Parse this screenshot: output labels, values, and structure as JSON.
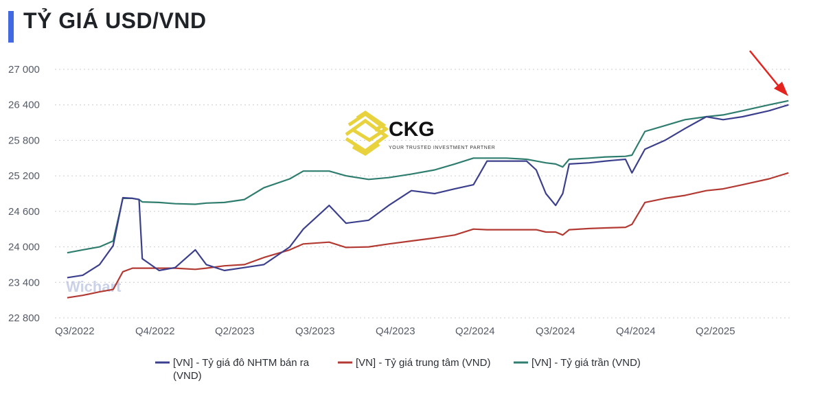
{
  "title": "TỶ GIÁ USD/VND",
  "colors": {
    "accent": "#4169e1",
    "arrow": "#e5231e"
  },
  "watermark": {
    "logo_text": "CKG",
    "tagline": "YOUR TRUSTED INVESTMENT PARTNER",
    "wichart": "Wichart"
  },
  "chart_data": {
    "type": "line",
    "title": "TỶ GIÁ USD/VND",
    "xlabel": "",
    "ylabel": "",
    "ylim": [
      22800,
      27000
    ],
    "yticks": [
      27000,
      26400,
      25800,
      25200,
      24600,
      24000,
      23400,
      22800
    ],
    "ytick_labels": [
      "27 000",
      "26 400",
      "25 800",
      "25 200",
      "24 600",
      "24 000",
      "23 400",
      "22 800"
    ],
    "xticks": [
      "Q3/2022",
      "Q4/2022",
      "Q2/2023",
      "Q3/2023",
      "Q4/2023",
      "Q2/2024",
      "Q3/2024",
      "Q4/2024",
      "Q2/2025"
    ],
    "grid": true,
    "legend_position": "bottom",
    "x": [
      "2022-07-01",
      "2022-07-25",
      "2022-08-20",
      "2022-09-10",
      "2022-09-25",
      "2022-10-10",
      "2022-10-20",
      "2022-10-25",
      "2022-11-20",
      "2022-12-15",
      "2023-01-15",
      "2023-02-01",
      "2023-03-01",
      "2023-04-01",
      "2023-05-01",
      "2023-06-10",
      "2023-07-01",
      "2023-08-10",
      "2023-09-05",
      "2023-10-10",
      "2023-11-10",
      "2023-12-15",
      "2024-01-20",
      "2024-02-20",
      "2024-03-20",
      "2024-04-10",
      "2024-05-10",
      "2024-06-10",
      "2024-06-25",
      "2024-07-10",
      "2024-07-25",
      "2024-08-05",
      "2024-08-15",
      "2024-09-15",
      "2024-10-10",
      "2024-11-10",
      "2024-11-20",
      "2024-12-10",
      "2025-01-10",
      "2025-02-10",
      "2025-03-15",
      "2025-04-10",
      "2025-05-10",
      "2025-06-20",
      "2025-07-20"
    ],
    "series": [
      {
        "name": "[VN] - Tỷ giá đô NHTM bán ra (VND)",
        "color": "#3b3f8c",
        "values": [
          23480,
          23520,
          23700,
          24020,
          24830,
          24820,
          24800,
          23800,
          23600,
          23650,
          23950,
          23700,
          23600,
          23650,
          23700,
          24000,
          24300,
          24700,
          24400,
          24450,
          24700,
          24950,
          24900,
          24980,
          25050,
          25450,
          25450,
          25450,
          25300,
          24900,
          24700,
          24900,
          25400,
          25420,
          25450,
          25480,
          25250,
          25650,
          25800,
          26000,
          26200,
          26150,
          26200,
          26300,
          26400
        ]
      },
      {
        "name": "[VN] - Tỷ giá trung tâm (VND)",
        "color": "#b33a33",
        "values": [
          23140,
          23180,
          23240,
          23280,
          23580,
          23640,
          23640,
          23640,
          23640,
          23640,
          23620,
          23640,
          23680,
          23700,
          23820,
          23950,
          24050,
          24080,
          23990,
          24000,
          24050,
          24100,
          24150,
          24200,
          24300,
          24290,
          24290,
          24290,
          24290,
          24250,
          24250,
          24200,
          24290,
          24310,
          24320,
          24330,
          24380,
          24750,
          24820,
          24870,
          24950,
          24980,
          25050,
          25150,
          25250
        ]
      },
      {
        "name": "[VN] - Tỷ giá trần (VND)",
        "color": "#2e7d6e",
        "values": [
          23900,
          23950,
          24000,
          24100,
          24820,
          24820,
          24800,
          24760,
          24750,
          24730,
          24720,
          24740,
          24750,
          24800,
          25000,
          25150,
          25280,
          25280,
          25200,
          25140,
          25170,
          25230,
          25300,
          25400,
          25500,
          25500,
          25500,
          25480,
          25450,
          25420,
          25400,
          25350,
          25480,
          25500,
          25520,
          25530,
          25550,
          25950,
          26050,
          26150,
          26200,
          26230,
          26300,
          26400,
          26470
        ]
      }
    ]
  },
  "legend": {
    "item1_line1": "[VN] - Tỷ giá đô NHTM bán ra",
    "item1_line2": "(VND)",
    "item2": "[VN] - Tỷ giá trung tâm (VND)",
    "item3": "[VN] - Tỷ giá trần (VND)"
  }
}
